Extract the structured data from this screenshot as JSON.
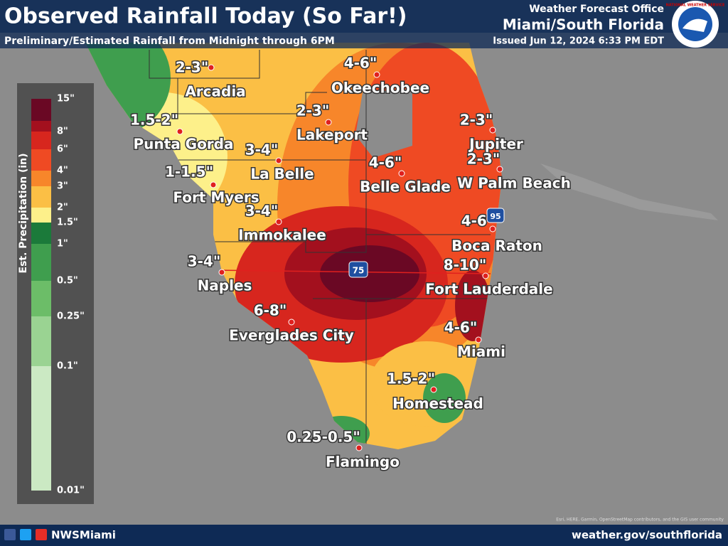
{
  "header": {
    "title": "Observed Rainfall Today (So Far!)",
    "subtitle": "Preliminary/Estimated Rainfall from Midnight through 6PM",
    "office_line": "Weather Forecast Office",
    "office": "Miami/South Florida",
    "issued": "Issued Jun 12, 2024 6:33 PM EDT",
    "logo_text": "NATIONAL WEATHER SERVICE"
  },
  "legend": {
    "title": "Est. Precipitation (in)",
    "labels": [
      "15\"",
      "8\"",
      "6\"",
      "4\"",
      "3\"",
      "2\"",
      "1.5\"",
      "1\"",
      "0.5\"",
      "0.25\"",
      "0.1\"",
      "0.01\""
    ],
    "colors": [
      "#6a0824",
      "#a3101e",
      "#d7261e",
      "#ef4a23",
      "#f7862a",
      "#fbbf45",
      "#fdf08a",
      "#1b7a3a",
      "#3f9e4e",
      "#6cbd68",
      "#9ad392",
      "#cbe9c3"
    ]
  },
  "places": [
    {
      "name": "Arcadia",
      "amount": "2-3\""
    },
    {
      "name": "Okeechobee",
      "amount": "4-6\""
    },
    {
      "name": "Punta Gorda",
      "amount": "1.5-2\""
    },
    {
      "name": "Lakeport",
      "amount": "2-3\""
    },
    {
      "name": "Jupiter",
      "amount": "2-3\""
    },
    {
      "name": "La Belle",
      "amount": "3-4\""
    },
    {
      "name": "Belle Glade",
      "amount": "4-6\""
    },
    {
      "name": "W Palm Beach",
      "amount": "2-3\""
    },
    {
      "name": "Fort Myers",
      "amount": "1-1.5\""
    },
    {
      "name": "Immokalee",
      "amount": "3-4\""
    },
    {
      "name": "Boca Raton",
      "amount": "4-6\""
    },
    {
      "name": "Naples",
      "amount": "3-4\""
    },
    {
      "name": "Fort Lauderdale",
      "amount": "8-10\""
    },
    {
      "name": "Everglades City",
      "amount": "6-8\""
    },
    {
      "name": "Miami",
      "amount": "4-6\""
    },
    {
      "name": "Homestead",
      "amount": "1.5-2\""
    },
    {
      "name": "Flamingo",
      "amount": "0.25-0.5\""
    }
  ],
  "shields": [
    "75",
    "95"
  ],
  "footer": {
    "social": "NWSMiami",
    "url": "weather.gov/southflorida",
    "attribution": "Esri, HERE, Garmin, OpenStreetMap contributors, and the GIS user community"
  }
}
